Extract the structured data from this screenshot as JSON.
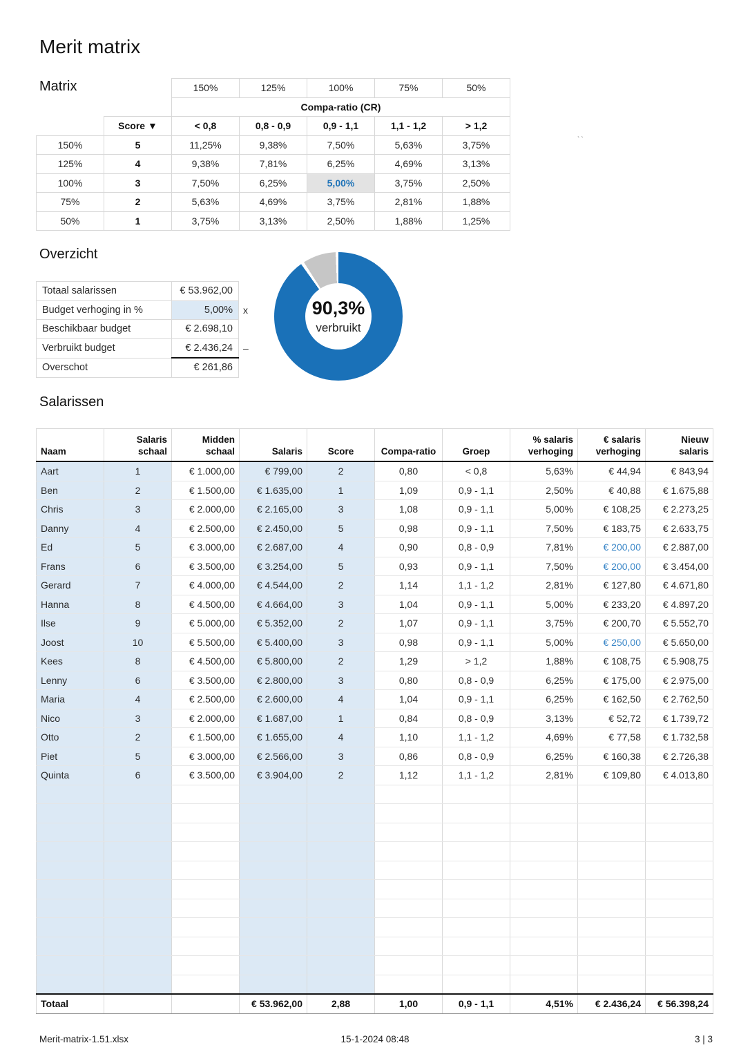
{
  "page": {
    "title": "Merit matrix",
    "artifact": "``",
    "footer": {
      "file": "Merit-matrix-1.51.xlsx",
      "datetime": "15-1-2024 08:48",
      "page": "3 | 3"
    }
  },
  "colors": {
    "accent_blue": "#1e73b8",
    "donut_blue": "#1a71b8",
    "donut_gray": "#c6c6c6",
    "input_cell_fill": "#dce9f5",
    "highlight_cell_fill": "#e3e3e3",
    "capped_value_text": "#3b87c8"
  },
  "matrix": {
    "section_label": "Matrix",
    "top_labels": [
      "150%",
      "125%",
      "100%",
      "75%",
      "50%"
    ],
    "span_header": "Compa-ratio (CR)",
    "score_header": "Score ▼",
    "cr_headers": [
      "< 0,8",
      "0,8 - 0,9",
      "0,9 - 1,1",
      "1,1 - 1,2",
      "> 1,2"
    ],
    "rows": [
      {
        "pct": "150%",
        "score": "5",
        "values": [
          "11,25%",
          "9,38%",
          "7,50%",
          "5,63%",
          "3,75%"
        ],
        "highlight": -1
      },
      {
        "pct": "125%",
        "score": "4",
        "values": [
          "9,38%",
          "7,81%",
          "6,25%",
          "4,69%",
          "3,13%"
        ],
        "highlight": -1
      },
      {
        "pct": "100%",
        "score": "3",
        "values": [
          "7,50%",
          "6,25%",
          "5,00%",
          "3,75%",
          "2,50%"
        ],
        "highlight": 2
      },
      {
        "pct": "75%",
        "score": "2",
        "values": [
          "5,63%",
          "4,69%",
          "3,75%",
          "2,81%",
          "1,88%"
        ],
        "highlight": -1
      },
      {
        "pct": "50%",
        "score": "1",
        "values": [
          "3,75%",
          "3,13%",
          "2,50%",
          "1,88%",
          "1,25%"
        ],
        "highlight": -1
      }
    ]
  },
  "overzicht": {
    "section_label": "Overzicht",
    "rows": [
      {
        "label": "Totaal salarissen",
        "value": "€ 53.962,00",
        "suffix": "",
        "shaded": false,
        "sumline": false
      },
      {
        "label": "Budget verhoging in %",
        "value": "5,00%",
        "suffix": "x",
        "shaded": true,
        "sumline": false
      },
      {
        "label": "Beschikbaar budget",
        "value": "€ 2.698,10",
        "suffix": "",
        "shaded": false,
        "sumline": false
      },
      {
        "label": "Verbruikt budget",
        "value": "€ 2.436,24",
        "suffix": "–",
        "shaded": false,
        "sumline": true
      },
      {
        "label": "Overschot",
        "value": "€ 261,86",
        "suffix": "",
        "shaded": false,
        "sumline": false
      }
    ],
    "donut": {
      "value": "90,3%",
      "label": "verbruikt"
    }
  },
  "chart_data": {
    "type": "pie",
    "subtype": "donut",
    "center_value": "90,3%",
    "center_label": "verbruikt",
    "slices": [
      {
        "name": "verbruikt",
        "value": 90.3,
        "color": "#1a71b8"
      },
      {
        "name": "resterend",
        "value": 9.7,
        "color": "#c6c6c6"
      }
    ],
    "legend_position": "none",
    "start_angle_deg": 0,
    "direction": "clockwise"
  },
  "salarissen": {
    "section_label": "Salarissen",
    "headers": [
      "Naam",
      "Salaris schaal",
      "Midden\nschaal",
      "Salaris",
      "Score",
      "Compa-ratio",
      "Groep",
      "% salaris\nverhoging",
      "€ salaris\nverhoging",
      "Nieuw salaris"
    ],
    "rows": [
      {
        "naam": "Aart",
        "schaal": "1",
        "midden": "€ 1.000,00",
        "salaris": "€ 799,00",
        "score": "2",
        "cr": "0,80",
        "groep": "< 0,8",
        "pct": "5,63%",
        "eur": "€ 44,94",
        "nieuw": "€ 843,94",
        "eur_blue": false
      },
      {
        "naam": "Ben",
        "schaal": "2",
        "midden": "€ 1.500,00",
        "salaris": "€ 1.635,00",
        "score": "1",
        "cr": "1,09",
        "groep": "0,9 - 1,1",
        "pct": "2,50%",
        "eur": "€ 40,88",
        "nieuw": "€ 1.675,88",
        "eur_blue": false
      },
      {
        "naam": "Chris",
        "schaal": "3",
        "midden": "€ 2.000,00",
        "salaris": "€ 2.165,00",
        "score": "3",
        "cr": "1,08",
        "groep": "0,9 - 1,1",
        "pct": "5,00%",
        "eur": "€ 108,25",
        "nieuw": "€ 2.273,25",
        "eur_blue": false
      },
      {
        "naam": "Danny",
        "schaal": "4",
        "midden": "€ 2.500,00",
        "salaris": "€ 2.450,00",
        "score": "5",
        "cr": "0,98",
        "groep": "0,9 - 1,1",
        "pct": "7,50%",
        "eur": "€ 183,75",
        "nieuw": "€ 2.633,75",
        "eur_blue": false
      },
      {
        "naam": "Ed",
        "schaal": "5",
        "midden": "€ 3.000,00",
        "salaris": "€ 2.687,00",
        "score": "4",
        "cr": "0,90",
        "groep": "0,8 - 0,9",
        "pct": "7,81%",
        "eur": "€ 200,00",
        "nieuw": "€ 2.887,00",
        "eur_blue": true
      },
      {
        "naam": "Frans",
        "schaal": "6",
        "midden": "€ 3.500,00",
        "salaris": "€ 3.254,00",
        "score": "5",
        "cr": "0,93",
        "groep": "0,9 - 1,1",
        "pct": "7,50%",
        "eur": "€ 200,00",
        "nieuw": "€ 3.454,00",
        "eur_blue": true
      },
      {
        "naam": "Gerard",
        "schaal": "7",
        "midden": "€ 4.000,00",
        "salaris": "€ 4.544,00",
        "score": "2",
        "cr": "1,14",
        "groep": "1,1 - 1,2",
        "pct": "2,81%",
        "eur": "€ 127,80",
        "nieuw": "€ 4.671,80",
        "eur_blue": false
      },
      {
        "naam": "Hanna",
        "schaal": "8",
        "midden": "€ 4.500,00",
        "salaris": "€ 4.664,00",
        "score": "3",
        "cr": "1,04",
        "groep": "0,9 - 1,1",
        "pct": "5,00%",
        "eur": "€ 233,20",
        "nieuw": "€ 4.897,20",
        "eur_blue": false
      },
      {
        "naam": "Ilse",
        "schaal": "9",
        "midden": "€ 5.000,00",
        "salaris": "€ 5.352,00",
        "score": "2",
        "cr": "1,07",
        "groep": "0,9 - 1,1",
        "pct": "3,75%",
        "eur": "€ 200,70",
        "nieuw": "€ 5.552,70",
        "eur_blue": false
      },
      {
        "naam": "Joost",
        "schaal": "10",
        "midden": "€ 5.500,00",
        "salaris": "€ 5.400,00",
        "score": "3",
        "cr": "0,98",
        "groep": "0,9 - 1,1",
        "pct": "5,00%",
        "eur": "€ 250,00",
        "nieuw": "€ 5.650,00",
        "eur_blue": true
      },
      {
        "naam": "Kees",
        "schaal": "8",
        "midden": "€ 4.500,00",
        "salaris": "€ 5.800,00",
        "score": "2",
        "cr": "1,29",
        "groep": "> 1,2",
        "pct": "1,88%",
        "eur": "€ 108,75",
        "nieuw": "€ 5.908,75",
        "eur_blue": false
      },
      {
        "naam": "Lenny",
        "schaal": "6",
        "midden": "€ 3.500,00",
        "salaris": "€ 2.800,00",
        "score": "3",
        "cr": "0,80",
        "groep": "0,8 - 0,9",
        "pct": "6,25%",
        "eur": "€ 175,00",
        "nieuw": "€ 2.975,00",
        "eur_blue": false
      },
      {
        "naam": "Maria",
        "schaal": "4",
        "midden": "€ 2.500,00",
        "salaris": "€ 2.600,00",
        "score": "4",
        "cr": "1,04",
        "groep": "0,9 - 1,1",
        "pct": "6,25%",
        "eur": "€ 162,50",
        "nieuw": "€ 2.762,50",
        "eur_blue": false
      },
      {
        "naam": "Nico",
        "schaal": "3",
        "midden": "€ 2.000,00",
        "salaris": "€ 1.687,00",
        "score": "1",
        "cr": "0,84",
        "groep": "0,8 - 0,9",
        "pct": "3,13%",
        "eur": "€ 52,72",
        "nieuw": "€ 1.739,72",
        "eur_blue": false
      },
      {
        "naam": "Otto",
        "schaal": "2",
        "midden": "€ 1.500,00",
        "salaris": "€ 1.655,00",
        "score": "4",
        "cr": "1,10",
        "groep": "1,1 - 1,2",
        "pct": "4,69%",
        "eur": "€ 77,58",
        "nieuw": "€ 1.732,58",
        "eur_blue": false
      },
      {
        "naam": "Piet",
        "schaal": "5",
        "midden": "€ 3.000,00",
        "salaris": "€ 2.566,00",
        "score": "3",
        "cr": "0,86",
        "groep": "0,8 - 0,9",
        "pct": "6,25%",
        "eur": "€ 160,38",
        "nieuw": "€ 2.726,38",
        "eur_blue": false
      },
      {
        "naam": "Quinta",
        "schaal": "6",
        "midden": "€ 3.500,00",
        "salaris": "€ 3.904,00",
        "score": "2",
        "cr": "1,12",
        "groep": "1,1 - 1,2",
        "pct": "2,81%",
        "eur": "€ 109,80",
        "nieuw": "€ 4.013,80",
        "eur_blue": false
      }
    ],
    "empty_row_count": 11,
    "total": {
      "label": "Totaal",
      "salaris": "€ 53.962,00",
      "score": "2,88",
      "cr": "1,00",
      "groep": "0,9 - 1,1",
      "pct": "4,51%",
      "eur": "€ 2.436,24",
      "nieuw": "€ 56.398,24"
    }
  }
}
